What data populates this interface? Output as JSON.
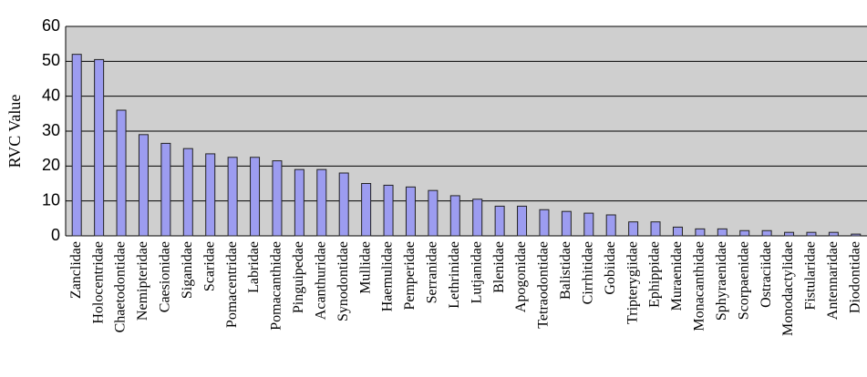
{
  "chart_data": {
    "type": "bar",
    "y_label": "RVC Value",
    "categories": [
      "Zanclidae",
      "Holocentridae",
      "Chaetodontidae",
      "Nemipteridae",
      "Caesionidae",
      "Siganidae",
      "Scaridae",
      "Pomacentridae",
      "Labridae",
      "Pomacanthidae",
      "Pinguipedae",
      "Acanthuridae",
      "Synodontidae",
      "Mullidae",
      "Haemulidae",
      "Pemperidae",
      "Serranidae",
      "Lethrinidae",
      "Lutjanidae",
      "Blenidae",
      "Apogonidae",
      "Tetraodontidae",
      "Balistidae",
      "Cirrhitidae",
      "Gobiidae",
      "Tripterygiidae",
      "Ephippidae",
      "Muraenidae",
      "Monacanthidae",
      "Sphyraenidae",
      "Scorpaenidae",
      "Ostraciidae",
      "Monodactylidae",
      "Fistularidae",
      "Antennaridae",
      "Diodontidae"
    ],
    "values": [
      52,
      50.5,
      36,
      29,
      26.5,
      25,
      23.5,
      22.5,
      22.5,
      21.5,
      19,
      19,
      18,
      15,
      14.5,
      14,
      13,
      11.5,
      10.5,
      8.5,
      8.5,
      7.5,
      7,
      6.5,
      6,
      4,
      4,
      2.5,
      2,
      2,
      1.5,
      1.5,
      1,
      1,
      1,
      0.5
    ],
    "color": "#9c9cf0",
    "ylim": [
      0,
      60
    ],
    "yticks": [
      0,
      10,
      20,
      30,
      40,
      50,
      60
    ],
    "grid": true
  }
}
